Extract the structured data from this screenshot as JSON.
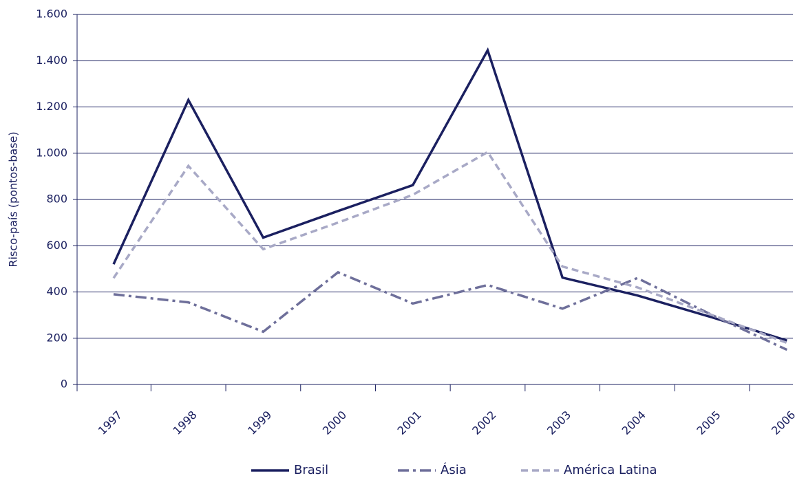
{
  "chart_data": {
    "type": "line",
    "y_label": "Risco-país (pontos-base)",
    "categories": [
      "1997",
      "1998",
      "1999",
      "2000",
      "2001",
      "2002",
      "2003",
      "2004",
      "2005",
      "2006"
    ],
    "series": [
      {
        "name": "Brasil",
        "color": "#1b2060",
        "dash": "solid",
        "values": [
          520,
          1230,
          635,
          750,
          862,
          1445,
          462,
          385,
          290,
          190
        ]
      },
      {
        "name": "Ásia",
        "color": "#6e6f9a",
        "dash": "dashdot",
        "values": [
          390,
          355,
          228,
          485,
          350,
          430,
          328,
          460,
          300,
          150
        ]
      },
      {
        "name": "América Latina",
        "color": "#a8a9c6",
        "dash": "dashed",
        "values": [
          460,
          945,
          585,
          700,
          820,
          1005,
          510,
          420,
          300,
          180
        ]
      }
    ],
    "ylim": [
      0,
      1600
    ],
    "yticks": [
      0,
      200,
      400,
      600,
      800,
      {
        "value": 1000,
        "label": "1.000"
      },
      {
        "value": 1200,
        "label": "1.200"
      },
      {
        "value": 1400,
        "label": "1.400"
      },
      {
        "value": 1600,
        "label": "1.600"
      }
    ],
    "grid": true,
    "legend": "bottom"
  }
}
